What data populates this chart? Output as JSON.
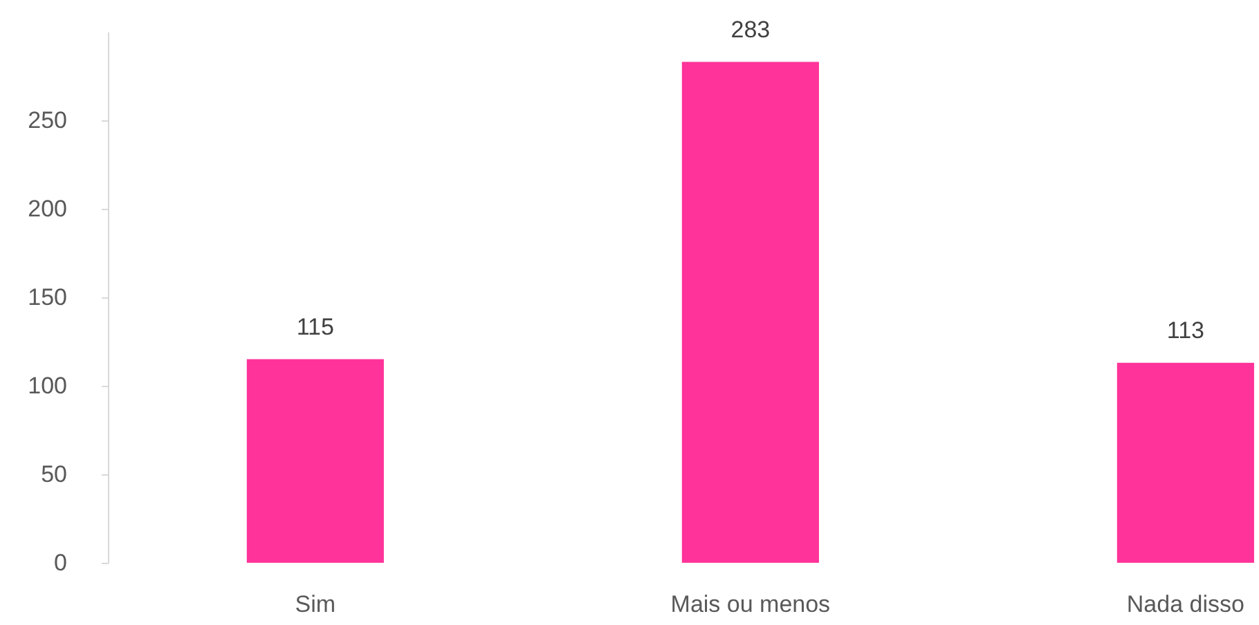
{
  "chart_data": {
    "type": "bar",
    "categories": [
      "Sim",
      "Mais ou menos",
      "Nada disso"
    ],
    "values": [
      115,
      283,
      113
    ],
    "color": "#ff3399",
    "ylim": [
      0,
      300
    ],
    "yticks": [
      0,
      50,
      100,
      150,
      200,
      250
    ],
    "data_labels": true
  }
}
